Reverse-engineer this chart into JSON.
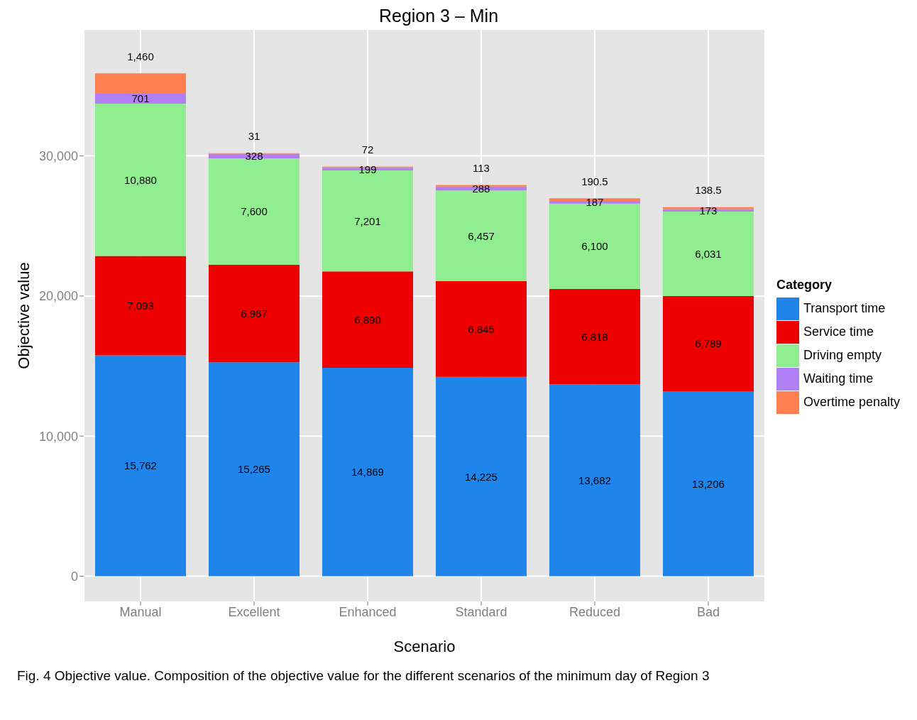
{
  "chart_data": {
    "type": "bar",
    "title": "Region 3 – Min",
    "xlabel": "Scenario",
    "ylabel": "Objective value",
    "legend_title": "Category",
    "categories": [
      "Manual",
      "Excellent",
      "Enhanced",
      "Standard",
      "Reduced",
      "Bad"
    ],
    "stacked": true,
    "series": [
      {
        "name": "Transport time",
        "color": "#1f85eb",
        "values": [
          15762,
          15265,
          14869,
          14225,
          13682,
          13206
        ],
        "value_labels": [
          "15,762",
          "15,265",
          "14,869",
          "14,225",
          "13,682",
          "13,206"
        ]
      },
      {
        "name": "Service time",
        "color": "#ee0000",
        "values": [
          7093,
          6967,
          6890,
          6845,
          6818,
          6789
        ],
        "value_labels": [
          "7,093",
          "6,967",
          "6,890",
          "6,845",
          "6,818",
          "6,789"
        ]
      },
      {
        "name": "Driving empty",
        "color": "#90ee90",
        "values": [
          10880,
          7600,
          7201,
          6457,
          6100,
          6031
        ],
        "value_labels": [
          "10,880",
          "7,600",
          "7,201",
          "6,457",
          "6,100",
          "6,031"
        ]
      },
      {
        "name": "Waiting time",
        "color": "#b07ff5",
        "values": [
          701,
          328,
          199,
          288,
          187,
          173
        ],
        "value_labels": [
          "701",
          "328",
          "199",
          "288",
          "187",
          "173"
        ]
      },
      {
        "name": "Overtime penalty",
        "color": "#ff7f50",
        "values": [
          1460,
          31,
          72,
          113,
          190.5,
          138.5
        ],
        "value_labels": [
          "1,460",
          "31",
          "72",
          "113",
          "190.5",
          "138.5"
        ]
      }
    ],
    "ylim": [
      -1800,
      39000
    ],
    "yticks": [
      {
        "value": 0,
        "label": "0"
      },
      {
        "value": 10000,
        "label": "10,000"
      },
      {
        "value": 20000,
        "label": "20,000"
      },
      {
        "value": 30000,
        "label": "30,000"
      }
    ],
    "grid": true,
    "legend": "right",
    "annotations": [
      "Fig. 4 Objective value. Composition of the objective value for the different scenarios of the minimum day of Region 3"
    ]
  }
}
